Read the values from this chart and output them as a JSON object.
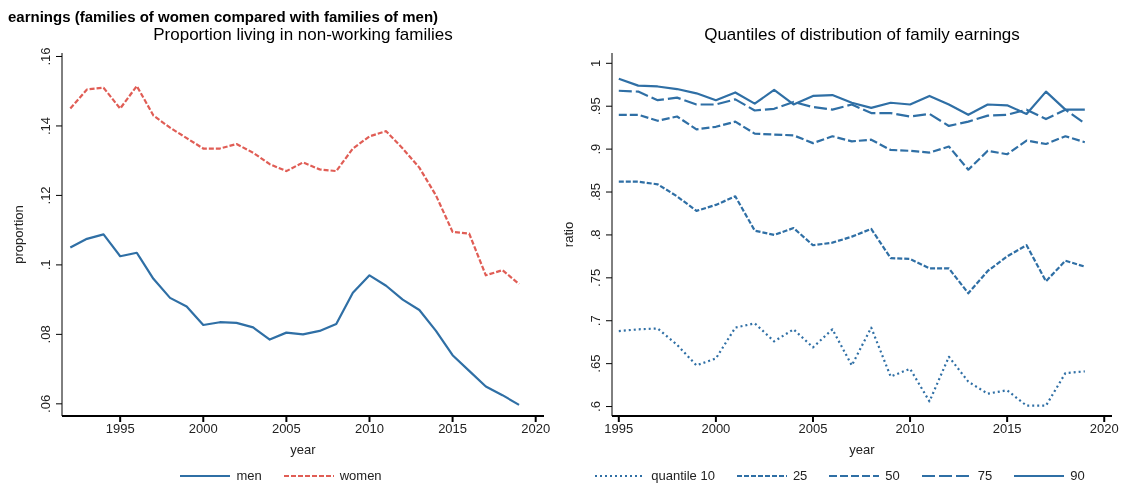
{
  "chart_data": [
    {
      "type": "line",
      "title": "Proportion living in non-working families",
      "annotations": [
        "earnings (families of women compared with families of men)"
      ],
      "xlabel": "year",
      "ylabel": "proportion",
      "x": [
        1992,
        1993,
        1994,
        1995,
        1996,
        1997,
        1998,
        1999,
        2000,
        2001,
        2002,
        2003,
        2004,
        2005,
        2006,
        2007,
        2008,
        2009,
        2010,
        2011,
        2012,
        2013,
        2014,
        2015,
        2016,
        2017,
        2018,
        2019
      ],
      "series": [
        {
          "name": "men",
          "color": "#2f6fa5",
          "line_style": "solid",
          "values": [
            0.105,
            0.1075,
            0.1088,
            0.1025,
            0.1035,
            0.096,
            0.0905,
            0.088,
            0.0827,
            0.0835,
            0.0833,
            0.082,
            0.0785,
            0.0805,
            0.08,
            0.081,
            0.083,
            0.092,
            0.097,
            0.094,
            0.09,
            0.087,
            0.081,
            0.074,
            0.0695,
            0.065,
            0.0625,
            0.0597
          ]
        },
        {
          "name": "women",
          "color": "#e05d55",
          "line_style": "dashed",
          "values": [
            0.145,
            0.1505,
            0.151,
            0.145,
            0.1515,
            0.143,
            0.1395,
            0.1365,
            0.1335,
            0.1335,
            0.1348,
            0.1323,
            0.129,
            0.127,
            0.1295,
            0.1275,
            0.127,
            0.1335,
            0.137,
            0.1385,
            0.1335,
            0.128,
            0.12,
            0.1095,
            0.109,
            0.097,
            0.0985,
            0.0945
          ]
        }
      ],
      "xlim": [
        1991.5,
        2020.5
      ],
      "xticks": [
        1995,
        2000,
        2005,
        2010,
        2015,
        2020
      ],
      "ylim": [
        0.0565,
        0.161
      ],
      "yticks": [
        {
          "value": 0.06,
          "label": ".06"
        },
        {
          "value": 0.08,
          "label": ".08"
        },
        {
          "value": 0.1,
          "label": ".1"
        },
        {
          "value": 0.12,
          "label": ".12"
        },
        {
          "value": 0.14,
          "label": ".14"
        },
        {
          "value": 0.16,
          "label": ".16"
        }
      ],
      "grid": false,
      "legend": "bottom",
      "marker": "none"
    },
    {
      "type": "line",
      "title": "Quantiles of distribution of family earnings",
      "xlabel": "year",
      "ylabel": "ratio",
      "x": [
        1995,
        1996,
        1997,
        1998,
        1999,
        2000,
        2001,
        2002,
        2003,
        2004,
        2005,
        2006,
        2007,
        2008,
        2009,
        2010,
        2011,
        2012,
        2013,
        2014,
        2015,
        2016,
        2017,
        2018,
        2019
      ],
      "series": [
        {
          "name": "quantile 10",
          "color": "#2f6fa5",
          "line_style": "dotted",
          "values": [
            0.688,
            0.69,
            0.691,
            0.672,
            0.648,
            0.656,
            0.692,
            0.697,
            0.676,
            0.69,
            0.669,
            0.69,
            0.648,
            0.692,
            0.635,
            0.644,
            0.606,
            0.658,
            0.629,
            0.615,
            0.619,
            0.601,
            0.601,
            0.639,
            0.641
          ]
        },
        {
          "name": "25",
          "color": "#2f6fa5",
          "line_style": "dashed",
          "values": [
            0.862,
            0.862,
            0.859,
            0.845,
            0.828,
            0.835,
            0.845,
            0.805,
            0.8,
            0.808,
            0.788,
            0.791,
            0.798,
            0.807,
            0.773,
            0.772,
            0.761,
            0.761,
            0.732,
            0.758,
            0.775,
            0.788,
            0.746,
            0.77,
            0.763
          ]
        },
        {
          "name": "50",
          "color": "#2f6fa5",
          "line_style": "dashed",
          "values": [
            0.94,
            0.94,
            0.933,
            0.938,
            0.923,
            0.926,
            0.932,
            0.918,
            0.917,
            0.916,
            0.907,
            0.915,
            0.909,
            0.911,
            0.899,
            0.898,
            0.896,
            0.903,
            0.876,
            0.898,
            0.894,
            0.91,
            0.906,
            0.915,
            0.908
          ]
        },
        {
          "name": "75",
          "color": "#2f6fa5",
          "line_style": "dashed",
          "values": [
            0.968,
            0.967,
            0.957,
            0.96,
            0.952,
            0.952,
            0.958,
            0.945,
            0.947,
            0.955,
            0.949,
            0.946,
            0.952,
            0.942,
            0.942,
            0.938,
            0.941,
            0.927,
            0.932,
            0.939,
            0.94,
            0.946,
            0.935,
            0.946,
            0.93
          ]
        },
        {
          "name": "90",
          "color": "#2f6fa5",
          "line_style": "solid",
          "values": [
            0.982,
            0.974,
            0.973,
            0.97,
            0.965,
            0.957,
            0.966,
            0.953,
            0.969,
            0.952,
            0.962,
            0.963,
            0.954,
            0.948,
            0.954,
            0.952,
            0.962,
            0.952,
            0.94,
            0.952,
            0.951,
            0.941,
            0.967,
            0.946,
            0.946
          ]
        }
      ],
      "xlim": [
        1994.65,
        2020.4
      ],
      "xticks": [
        1995,
        2000,
        2005,
        2010,
        2015,
        2020
      ],
      "ylim": [
        0.589,
        1.012
      ],
      "yticks": [
        {
          "value": 0.6,
          "label": ".6"
        },
        {
          "value": 0.65,
          "label": ".65"
        },
        {
          "value": 0.7,
          "label": ".7"
        },
        {
          "value": 0.75,
          "label": ".75"
        },
        {
          "value": 0.8,
          "label": ".8"
        },
        {
          "value": 0.85,
          "label": ".85"
        },
        {
          "value": 0.9,
          "label": ".9"
        },
        {
          "value": 0.95,
          "label": ".95"
        },
        {
          "value": 1,
          "label": "1"
        }
      ],
      "grid": false,
      "legend": "bottom",
      "marker": "none"
    }
  ]
}
